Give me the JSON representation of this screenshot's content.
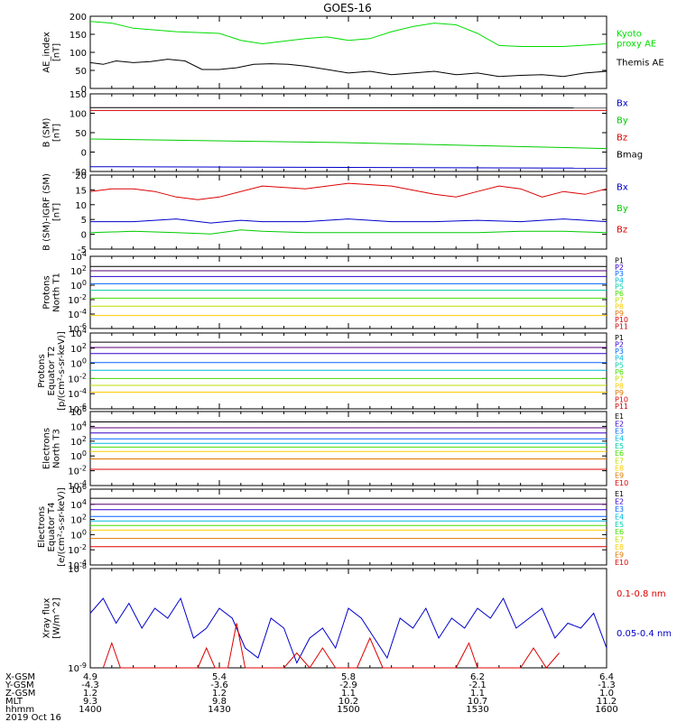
{
  "title": "GOES-16",
  "colors": {
    "kyoto": "#00dd00",
    "themis": "#000000",
    "bx": "#0000cc",
    "by": "#00cc00",
    "bz": "#dd0000",
    "bmag": "#000000",
    "xray_long": "#dd0000",
    "xray_short": "#0000cc",
    "ch": [
      "#000000",
      "#550077",
      "#3300cc",
      "#0066ff",
      "#00bbdd",
      "#00ccaa",
      "#44dd00",
      "#bbdd00",
      "#ffcc00",
      "#dd7700",
      "#dd0000",
      "#cc0000"
    ]
  },
  "panels": [
    {
      "id": "ae",
      "ylabel": "AE_index\n[nT]",
      "yticks": [
        "0",
        "50",
        "100",
        "150",
        "200"
      ],
      "legend": [
        {
          "text": "Kyoto\nproxy AE",
          "color": "kyoto"
        },
        {
          "text": "Themis AE",
          "color": "themis"
        }
      ]
    },
    {
      "id": "bsm",
      "ylabel": "B (SM)\n[nT]",
      "yticks": [
        "-50",
        "0",
        "50",
        "100",
        "150"
      ],
      "legend": [
        {
          "text": "Bx",
          "color": "bx"
        },
        {
          "text": "By",
          "color": "by"
        },
        {
          "text": "Bz",
          "color": "bz"
        },
        {
          "text": "Bmag",
          "color": "bmag"
        }
      ]
    },
    {
      "id": "bigrf",
      "ylabel": "B (SM)-IGRF (SM)\n[nT]",
      "yticks": [
        "-5",
        "0",
        "5",
        "10",
        "15",
        "20"
      ],
      "legend": [
        {
          "text": "Bx",
          "color": "bx"
        },
        {
          "text": "By",
          "color": "by"
        },
        {
          "text": "Bz",
          "color": "bz"
        }
      ]
    },
    {
      "id": "p1",
      "ylabel": "Protons\nNorth T1",
      "yticks": [
        "10^-6",
        "10^-4",
        "10^-2",
        "10^0",
        "10^2",
        "10^4"
      ],
      "legend": [
        "P1",
        "P2",
        "P3",
        "P4",
        "P5",
        "P6",
        "P7",
        "P8",
        "P9",
        "P10",
        "P11"
      ]
    },
    {
      "id": "p2",
      "ylabel": "Protons\nEquator T2\n[p/(cm²-s-sr-keV)]",
      "yticks": [
        "10^-6",
        "10^-4",
        "10^-2",
        "10^0",
        "10^2",
        "10^4"
      ],
      "legend": [
        "P1",
        "P2",
        "P3",
        "P4",
        "P5",
        "P6",
        "P7",
        "P8",
        "P9",
        "P10",
        "P11"
      ]
    },
    {
      "id": "e1",
      "ylabel": "Electrons\nNorth T3",
      "yticks": [
        "10^-4",
        "10^-2",
        "10^0",
        "10^2",
        "10^4",
        "10^6"
      ],
      "legend": [
        "E1",
        "E2",
        "E3",
        "E4",
        "E5",
        "E6",
        "E7",
        "E8",
        "E9",
        "E10"
      ]
    },
    {
      "id": "e2",
      "ylabel": "Electrons\nEquator T4\n[e/(cm²-s-sr-keV)]",
      "yticks": [
        "10^-4",
        "10^-2",
        "10^0",
        "10^2",
        "10^4",
        "10^6"
      ],
      "legend": [
        "E1",
        "E2",
        "E3",
        "E4",
        "E5",
        "E6",
        "E7",
        "E8",
        "E9",
        "E10"
      ]
    },
    {
      "id": "xray",
      "ylabel": "Xray flux\n[W/m^2]",
      "yticks": [
        "10^-9",
        "10^-8"
      ],
      "legend": [
        {
          "text": "0.1-0.8 nm",
          "color": "xray_long"
        },
        {
          "text": "0.05-0.4 nm",
          "color": "xray_short"
        }
      ]
    }
  ],
  "footer": {
    "labels": [
      "X-GSM",
      "Y-GSM",
      "Z-GSM",
      "MLT",
      "hhmm",
      "2019 Oct 16"
    ],
    "columns": [
      [
        "4.9",
        "-4.3",
        "1.2",
        "9.3",
        "1400"
      ],
      [
        "5.4",
        "-3.6",
        "1.2",
        "9.8",
        "1430"
      ],
      [
        "5.8",
        "-2.9",
        "1.1",
        "10.2",
        "1500"
      ],
      [
        "6.2",
        "-2.1",
        "1.1",
        "10.7",
        "1530"
      ],
      [
        "6.4",
        "-1.3",
        "1.0",
        "11.2",
        "1600"
      ]
    ]
  },
  "chart_data": {
    "type": "line",
    "title": "GOES-16",
    "x": {
      "start": "1400",
      "end": "1600",
      "ticks": [
        "1400",
        "1430",
        "1500",
        "1530",
        "1600"
      ]
    },
    "ae": {
      "ylim": [
        0,
        210
      ],
      "series": [
        {
          "name": "Kyoto proxy AE",
          "color": "kyoto",
          "t": [
            0,
            5,
            10,
            20,
            30,
            35,
            40,
            50,
            55,
            60,
            65,
            70,
            75,
            80,
            85,
            90,
            95,
            100,
            105,
            110,
            120
          ],
          "y": [
            195,
            190,
            175,
            165,
            160,
            140,
            130,
            145,
            150,
            140,
            145,
            165,
            180,
            190,
            185,
            160,
            125,
            122,
            122,
            122,
            130
          ]
        },
        {
          "name": "Themis AE",
          "color": "themis",
          "t": [
            0,
            3,
            6,
            10,
            14,
            18,
            22,
            26,
            30,
            34,
            38,
            42,
            46,
            50,
            55,
            60,
            65,
            70,
            75,
            80,
            85,
            90,
            95,
            100,
            105,
            110,
            115,
            120
          ],
          "y": [
            75,
            70,
            80,
            75,
            78,
            85,
            80,
            55,
            55,
            60,
            70,
            72,
            70,
            65,
            55,
            45,
            50,
            40,
            45,
            50,
            40,
            45,
            35,
            38,
            40,
            35,
            45,
            50
          ]
        }
      ]
    },
    "bsm": {
      "ylim": [
        -55,
        155
      ],
      "series": [
        {
          "name": "Bx",
          "color": "bx",
          "t": [
            0,
            120
          ],
          "y": [
            -42,
            -46
          ]
        },
        {
          "name": "By",
          "color": "by",
          "t": [
            0,
            60,
            120
          ],
          "y": [
            33,
            23,
            7
          ]
        },
        {
          "name": "Bz",
          "color": "bz",
          "t": [
            0,
            120
          ],
          "y": [
            110,
            110
          ]
        },
        {
          "name": "Bmag",
          "color": "bmag",
          "t": [
            0,
            120
          ],
          "y": [
            118,
            117
          ]
        }
      ]
    },
    "bigrf": {
      "ylim": [
        -6,
        21
      ],
      "series": [
        {
          "name": "Bx",
          "color": "bx",
          "t": [
            0,
            10,
            20,
            28,
            35,
            40,
            50,
            60,
            70,
            80,
            90,
            100,
            110,
            120
          ],
          "y": [
            4,
            4,
            5,
            3.5,
            4.5,
            4,
            4,
            5,
            4,
            4,
            4.5,
            4,
            5,
            4
          ]
        },
        {
          "name": "By",
          "color": "by",
          "t": [
            0,
            10,
            20,
            28,
            35,
            40,
            50,
            60,
            70,
            80,
            90,
            100,
            110,
            120
          ],
          "y": [
            0,
            0.5,
            0,
            -0.5,
            1,
            0.5,
            0,
            0,
            0,
            0,
            0,
            0.5,
            0.5,
            0
          ]
        },
        {
          "name": "Bz",
          "color": "bz",
          "t": [
            0,
            5,
            10,
            15,
            20,
            25,
            30,
            40,
            50,
            60,
            70,
            80,
            85,
            90,
            95,
            100,
            105,
            110,
            115,
            120
          ],
          "y": [
            15,
            16,
            16,
            15,
            13,
            12,
            13,
            17,
            16,
            18,
            17,
            14,
            13,
            15,
            17,
            16,
            13,
            15,
            14,
            16
          ]
        }
      ]
    },
    "p1": {
      "ylog": true,
      "ylim": [
        -6,
        4
      ],
      "series": [
        {
          "name": "P1",
          "color": 0,
          "y": 2.6
        },
        {
          "name": "P2",
          "color": 1,
          "y": 2.0
        },
        {
          "name": "P3",
          "color": 2,
          "y": 1.2
        },
        {
          "name": "P4",
          "color": 3,
          "y": 0.2
        },
        {
          "name": "P5",
          "color": 5,
          "y": -0.7
        },
        {
          "name": "P6",
          "color": 6,
          "y": -1.8
        },
        {
          "name": "P7",
          "color": 7,
          "y": -2.9
        },
        {
          "name": "P8",
          "color": 8,
          "y": -4.2
        }
      ]
    },
    "p2": {
      "ylog": true,
      "ylim": [
        -6,
        4
      ],
      "series": [
        {
          "name": "P1",
          "color": 0,
          "y": 2.8
        },
        {
          "name": "P2",
          "color": 1,
          "y": 2.1
        },
        {
          "name": "P3",
          "color": 2,
          "y": 1.3
        },
        {
          "name": "P4",
          "color": 3,
          "y": 0.1
        },
        {
          "name": "P5",
          "color": 4,
          "y": -0.9
        },
        {
          "name": "P6",
          "color": 6,
          "y": -2.0
        },
        {
          "name": "P7",
          "color": 7,
          "y": -2.9
        },
        {
          "name": "P8",
          "color": 8,
          "y": -3.8
        }
      ]
    },
    "e1": {
      "ylog": true,
      "ylim": [
        -4,
        6
      ],
      "series": [
        {
          "name": "E1",
          "color": 0,
          "y": 4.6
        },
        {
          "name": "E2",
          "color": 1,
          "y": 3.8
        },
        {
          "name": "E3",
          "color": 2,
          "y": 3.1
        },
        {
          "name": "E4",
          "color": 3,
          "y": 2.3
        },
        {
          "name": "E5",
          "color": 4,
          "y": 1.7
        },
        {
          "name": "E6",
          "color": 6,
          "y": 1.2
        },
        {
          "name": "E7",
          "color": 8,
          "y": 0.6
        },
        {
          "name": "E8",
          "color": 9,
          "y": -0.4
        },
        {
          "name": "E9",
          "color": 10,
          "y": -1.8
        }
      ]
    },
    "e2": {
      "ylog": true,
      "ylim": [
        -4,
        6
      ],
      "series": [
        {
          "name": "E1",
          "color": 0,
          "y": 4.8
        },
        {
          "name": "E2",
          "color": 1,
          "y": 4.0
        },
        {
          "name": "E3",
          "color": 2,
          "y": 3.3
        },
        {
          "name": "E4",
          "color": 3,
          "y": 2.4
        },
        {
          "name": "E5",
          "color": 4,
          "y": 1.8
        },
        {
          "name": "E6",
          "color": 6,
          "y": 1.2
        },
        {
          "name": "E7",
          "color": 8,
          "y": 0.6
        },
        {
          "name": "E8",
          "color": 9,
          "y": -0.5
        },
        {
          "name": "E9",
          "color": 10,
          "y": -1.6
        }
      ]
    },
    "xray": {
      "ylog": true,
      "ylim": [
        -9,
        -8
      ],
      "series": [
        {
          "name": "0.05-0.4 nm",
          "color": "xray_short",
          "t": [
            0,
            3,
            6,
            9,
            12,
            15,
            18,
            21,
            24,
            27,
            30,
            33,
            36,
            39,
            42,
            45,
            48,
            51,
            54,
            57,
            60,
            63,
            66,
            69,
            72,
            75,
            78,
            81,
            84,
            87,
            90,
            93,
            96,
            99,
            102,
            105,
            108,
            111,
            114,
            117,
            120
          ],
          "y": [
            -8.45,
            -8.3,
            -8.55,
            -8.35,
            -8.6,
            -8.4,
            -8.5,
            -8.3,
            -8.7,
            -8.6,
            -8.4,
            -8.5,
            -8.8,
            -8.9,
            -8.5,
            -8.6,
            -8.95,
            -8.7,
            -8.6,
            -8.8,
            -8.4,
            -8.5,
            -8.7,
            -8.9,
            -8.5,
            -8.6,
            -8.4,
            -8.7,
            -8.5,
            -8.6,
            -8.4,
            -8.5,
            -8.3,
            -8.6,
            -8.5,
            -8.4,
            -8.7,
            -8.55,
            -8.6,
            -8.45,
            -8.8
          ]
        },
        {
          "name": "0.1-0.8 nm",
          "color": "xray_long",
          "t": [
            3,
            5,
            7,
            25,
            27,
            29,
            32,
            34,
            36,
            45,
            48,
            51,
            54,
            57,
            62,
            65,
            68,
            85,
            88,
            90,
            100,
            103,
            106,
            109
          ],
          "y": [
            -9.0,
            -8.75,
            -9.0,
            -9.0,
            -8.8,
            -9.0,
            -9.0,
            -8.55,
            -9.0,
            -9.0,
            -8.85,
            -9.0,
            -8.8,
            -9.0,
            -9.0,
            -8.7,
            -9.0,
            -9.0,
            -8.75,
            -9.0,
            -9.0,
            -8.8,
            -9.0,
            -8.85
          ]
        }
      ]
    }
  }
}
